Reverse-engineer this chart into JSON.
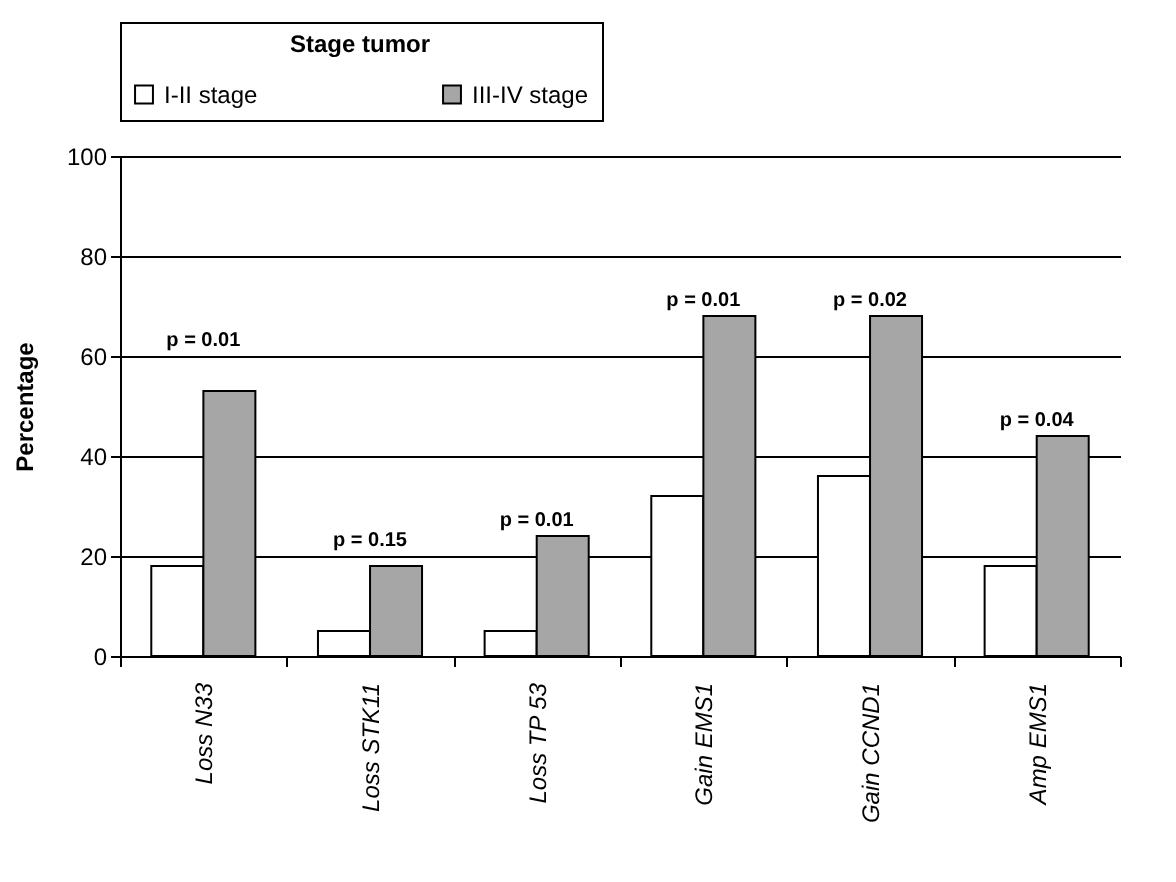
{
  "chart_data": {
    "type": "bar",
    "legend_title": "Stage tumor",
    "ylabel": "Percentage",
    "categories": [
      "Loss N33",
      "Loss STK11",
      "Loss TP 53",
      "Gain EMS1",
      "Gain CCND1",
      "Amp EMS1"
    ],
    "series": [
      {
        "name": "I-II stage",
        "color": "#ffffff",
        "values": [
          18,
          5,
          5,
          32,
          36,
          18
        ]
      },
      {
        "name": "III-IV stage",
        "color": "#a6a6a6",
        "values": [
          53,
          18,
          24,
          68,
          68,
          44
        ]
      }
    ],
    "ylim": [
      0,
      100
    ],
    "yticks": [
      0,
      20,
      40,
      60,
      80,
      100
    ],
    "grid": "y",
    "legend": "top",
    "annotations": [
      "p = 0.01",
      "p = 0.15",
      "p = 0.01",
      "p = 0.01",
      "p = 0.02",
      "p = 0.04"
    ]
  }
}
